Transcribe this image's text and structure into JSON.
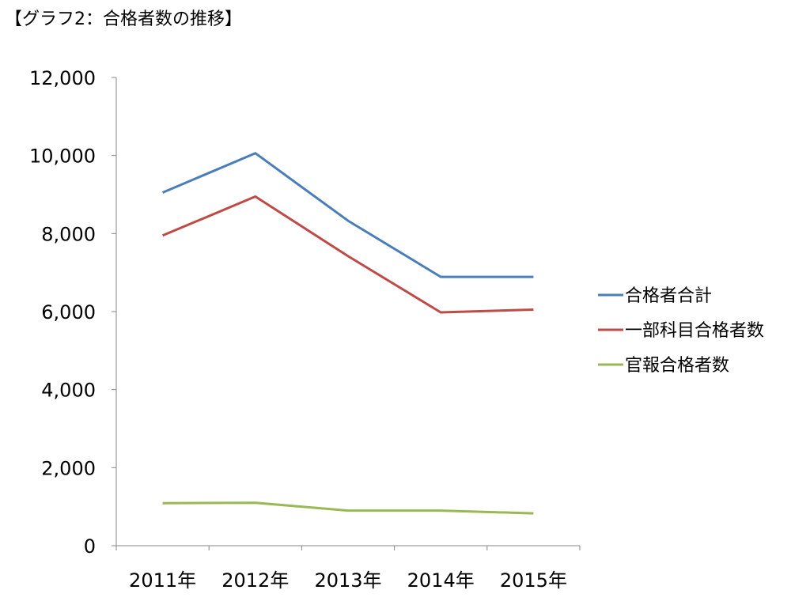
{
  "chart_data": {
    "type": "line",
    "title": "【グラフ2：合格者数の推移】",
    "categories": [
      "2011年",
      "2012年",
      "2013年",
      "2014年",
      "2015年"
    ],
    "y_ticks": [
      "0",
      "2,000",
      "4,000",
      "6,000",
      "8,000",
      "10,000",
      "12,000"
    ],
    "ylim": [
      0,
      12000
    ],
    "grid": false,
    "legend_position": "right",
    "series": [
      {
        "name": "合格者合計",
        "color": "#4a7ebb",
        "values": [
          9050,
          10060,
          8330,
          6890,
          6890
        ]
      },
      {
        "name": "一部科目合格者数",
        "color": "#be4b48",
        "values": [
          7950,
          8950,
          7420,
          5980,
          6050
        ]
      },
      {
        "name": "官報合格者数",
        "color": "#98b954",
        "values": [
          1090,
          1100,
          900,
          900,
          830
        ]
      }
    ]
  }
}
